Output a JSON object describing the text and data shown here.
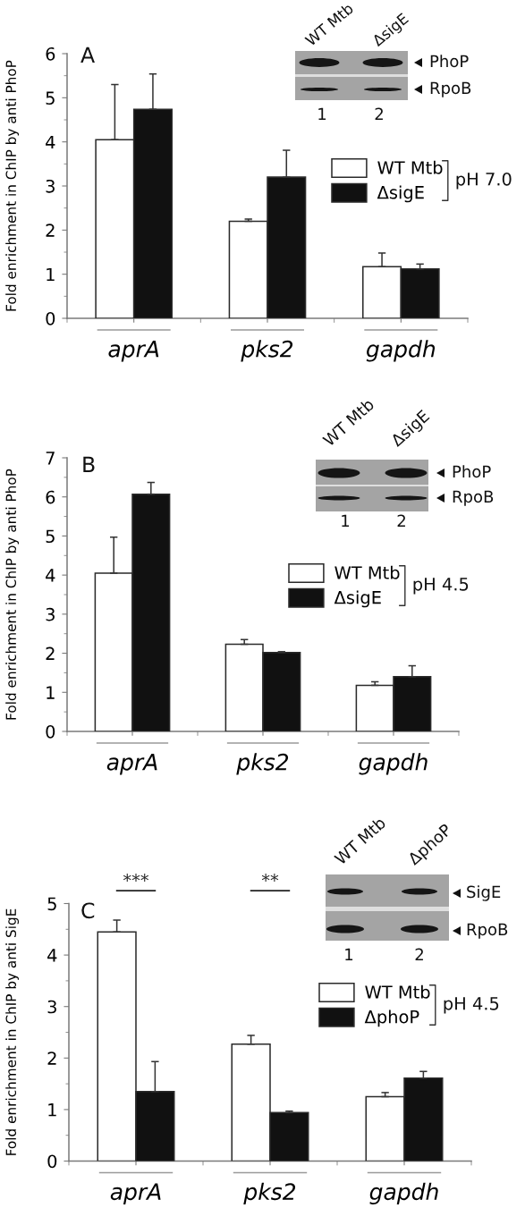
{
  "chart_data": [
    {
      "type": "bar",
      "ylabel": "Fold enrichment in ChIP by anti PhoP",
      "categories": [
        "aprA",
        "pks2",
        "gapdh"
      ],
      "series": [
        {
          "name": "WT Mtb",
          "color": "#ffffff",
          "values": [
            4.05,
            2.2,
            1.17
          ],
          "errors": [
            [
              4.05,
              5.3
            ],
            [
              2.2,
              2.25
            ],
            [
              1.17,
              1.48
            ]
          ]
        },
        {
          "name": "ΔsigE",
          "color": "#111111",
          "values": [
            4.74,
            3.2,
            1.12
          ],
          "errors": [
            [
              4.74,
              5.54
            ],
            [
              3.2,
              3.81
            ],
            [
              1.12,
              1.23
            ]
          ]
        }
      ],
      "ylim": [
        0,
        6
      ],
      "yticks": [
        0,
        1,
        2,
        3,
        4,
        5,
        6
      ],
      "legend": "right",
      "legend_title": "pH 7.0",
      "annotations": [
        "A",
        "WT Mtb",
        "ΔsigE",
        "PhoP",
        "RpoB",
        "1",
        "2"
      ]
    },
    {
      "type": "bar",
      "ylabel": "Fold enrichment in ChIP by anti PhoP",
      "categories": [
        "aprA",
        "pks2",
        "gapdh"
      ],
      "series": [
        {
          "name": "WT Mtb",
          "color": "#ffffff",
          "values": [
            4.05,
            2.23,
            1.18
          ],
          "errors": [
            [
              4.05,
              4.97
            ],
            [
              2.23,
              2.35
            ],
            [
              1.18,
              1.27
            ]
          ]
        },
        {
          "name": "ΔsigE",
          "color": "#111111",
          "values": [
            6.07,
            2.02,
            1.4
          ],
          "errors": [
            [
              6.07,
              6.37
            ],
            [
              2.02,
              2.04
            ],
            [
              1.4,
              1.68
            ]
          ]
        }
      ],
      "ylim": [
        0,
        7
      ],
      "yticks": [
        0,
        1,
        2,
        3,
        4,
        5,
        6,
        7
      ],
      "legend": "right",
      "legend_title": "pH 4.5",
      "annotations": [
        "B",
        "WT Mtb",
        "ΔsigE",
        "PhoP",
        "RpoB",
        "1",
        "2"
      ]
    },
    {
      "type": "bar",
      "ylabel": "Fold enrichment in ChIP by anti SigE",
      "categories": [
        "aprA",
        "pks2",
        "gapdh"
      ],
      "series": [
        {
          "name": "WT Mtb",
          "color": "#ffffff",
          "values": [
            4.45,
            2.27,
            1.25
          ],
          "errors": [
            [
              4.45,
              4.68
            ],
            [
              2.27,
              2.44
            ],
            [
              1.25,
              1.33
            ]
          ]
        },
        {
          "name": "ΔphoP",
          "color": "#111111",
          "values": [
            1.35,
            0.94,
            1.61
          ],
          "errors": [
            [
              1.35,
              1.93
            ],
            [
              0.94,
              0.97
            ],
            [
              1.61,
              1.74
            ]
          ]
        }
      ],
      "ylim": [
        0,
        5
      ],
      "yticks": [
        0,
        1,
        2,
        3,
        4,
        5
      ],
      "legend": "right",
      "legend_title": "pH 4.5",
      "annotations": [
        "C",
        "***",
        "**",
        "WT Mtb",
        "ΔphoP",
        "SigE",
        "RpoB",
        "1",
        "2"
      ]
    }
  ]
}
